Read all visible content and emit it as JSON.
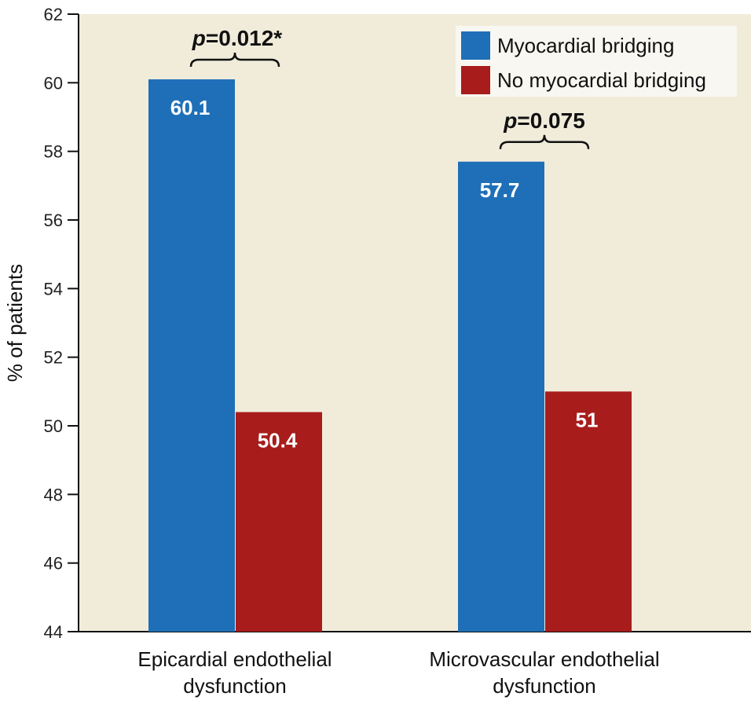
{
  "chart_data": {
    "type": "bar",
    "categories": [
      "Epicardial endothelial dysfunction",
      "Microvascular endothelial dysfunction"
    ],
    "category_lines": [
      [
        "Epicardial endothelial",
        "dysfunction"
      ],
      [
        "Microvascular endothelial",
        "dysfunction"
      ]
    ],
    "series": [
      {
        "name": "Myocardial bridging",
        "values": [
          60.1,
          57.7
        ],
        "labels": [
          "60.1",
          "57.7"
        ],
        "color": "#1f6fb8"
      },
      {
        "name": "No myocardial bridging",
        "values": [
          50.4,
          51
        ],
        "labels": [
          "50.4",
          "51"
        ],
        "color": "#a81c1c"
      }
    ],
    "annotations": [
      {
        "category_index": 0,
        "p_symbol": "p",
        "p_value": "=0.012*"
      },
      {
        "category_index": 1,
        "p_symbol": "p",
        "p_value": "=0.075"
      }
    ],
    "ylabel": "% of patients",
    "xlabel": "",
    "ylim": [
      44,
      62
    ],
    "yticks": [
      44,
      46,
      48,
      50,
      52,
      54,
      56,
      58,
      60,
      62
    ],
    "legend_position": "top-right",
    "plot_background": "#f1ecda",
    "legend_background": "#f8f7f1"
  }
}
